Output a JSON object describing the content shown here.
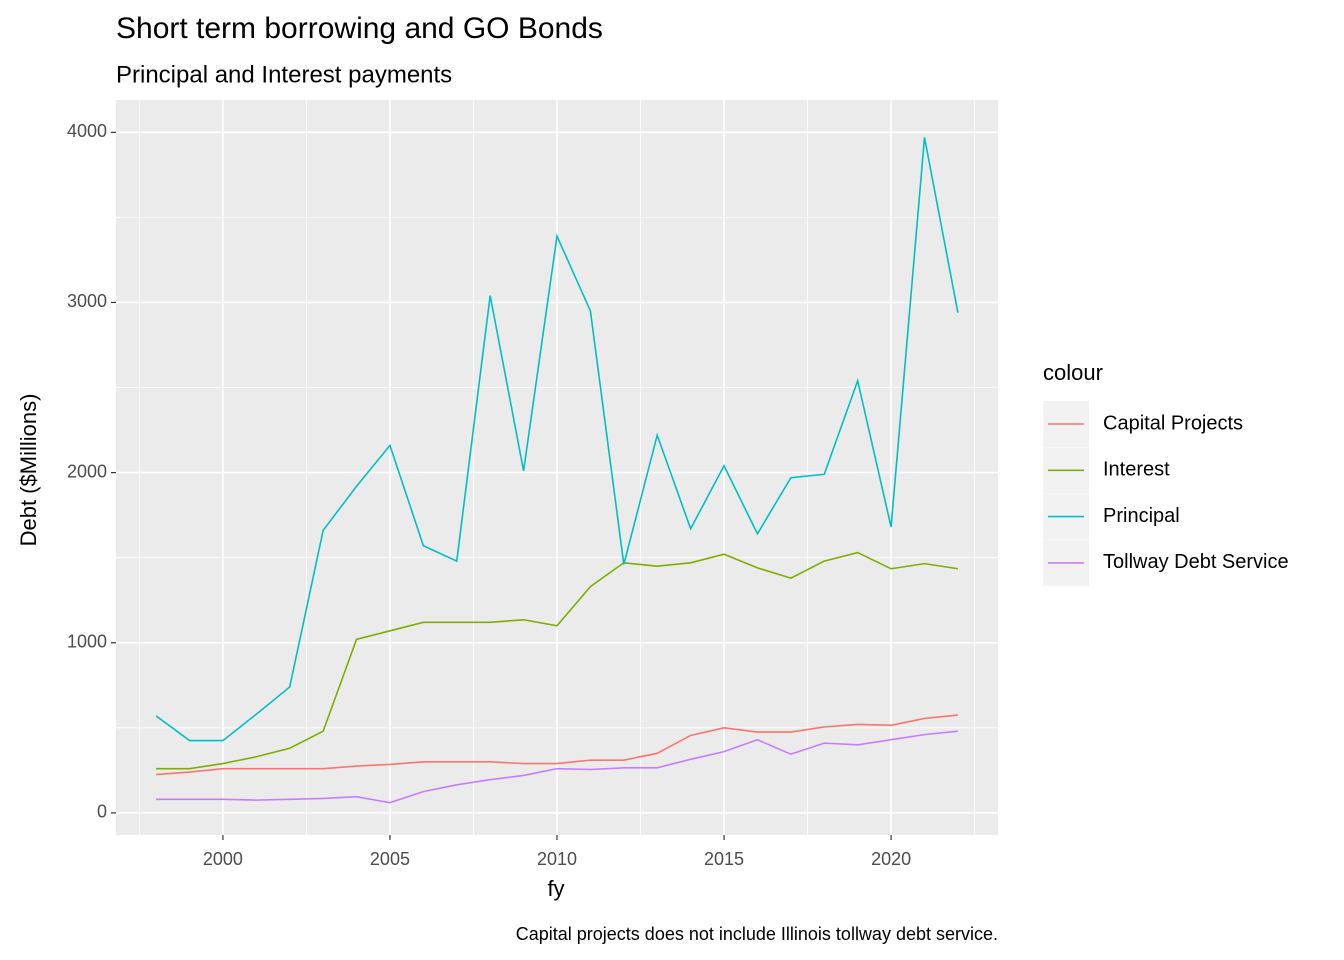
{
  "chart_data": {
    "type": "line",
    "title": "Short term borrowing and GO Bonds",
    "subtitle": "Principal and Interest payments",
    "x_label": "fy",
    "y_label": "Debt ($Millions)",
    "caption": "Capital projects does not include Illinois tollway debt service.",
    "legend_title": "colour",
    "legend_position": "right",
    "grid": true,
    "x": [
      1998,
      1999,
      2000,
      2001,
      2002,
      2003,
      2004,
      2005,
      2006,
      2007,
      2008,
      2009,
      2010,
      2011,
      2012,
      2013,
      2014,
      2015,
      2016,
      2017,
      2018,
      2019,
      2020,
      2021,
      2022
    ],
    "xlim": [
      1996.8,
      2023.2
    ],
    "xticks": [
      2000,
      2005,
      2010,
      2015,
      2020
    ],
    "ylim": [
      -130,
      4190
    ],
    "yticks": [
      0,
      1000,
      2000,
      3000,
      4000
    ],
    "series": [
      {
        "name": "Capital Projects",
        "color": "#F8766D",
        "values": [
          225,
          240,
          260,
          260,
          260,
          260,
          275,
          285,
          300,
          300,
          300,
          290,
          290,
          310,
          310,
          350,
          455,
          500,
          475,
          475,
          505,
          520,
          515,
          555,
          575
        ]
      },
      {
        "name": "Interest",
        "color": "#7CAE00",
        "values": [
          260,
          260,
          290,
          330,
          380,
          480,
          1020,
          1070,
          1120,
          1120,
          1120,
          1135,
          1100,
          1330,
          1470,
          1450,
          1470,
          1520,
          1440,
          1380,
          1480,
          1530,
          1435,
          1465,
          1435
        ]
      },
      {
        "name": "Principal",
        "color": "#00BFC4",
        "values": [
          570,
          425,
          425,
          580,
          740,
          1660,
          1920,
          2160,
          1570,
          1480,
          3040,
          2010,
          3390,
          2950,
          1460,
          2220,
          1670,
          2040,
          1640,
          1970,
          1990,
          2540,
          1680,
          3970,
          2940
        ]
      },
      {
        "name": "Tollway Debt Service",
        "color": "#C77CFF",
        "values": [
          80,
          80,
          80,
          75,
          80,
          85,
          95,
          60,
          125,
          165,
          195,
          220,
          260,
          255,
          265,
          265,
          315,
          360,
          430,
          345,
          410,
          400,
          430,
          460,
          480
        ]
      }
    ]
  }
}
